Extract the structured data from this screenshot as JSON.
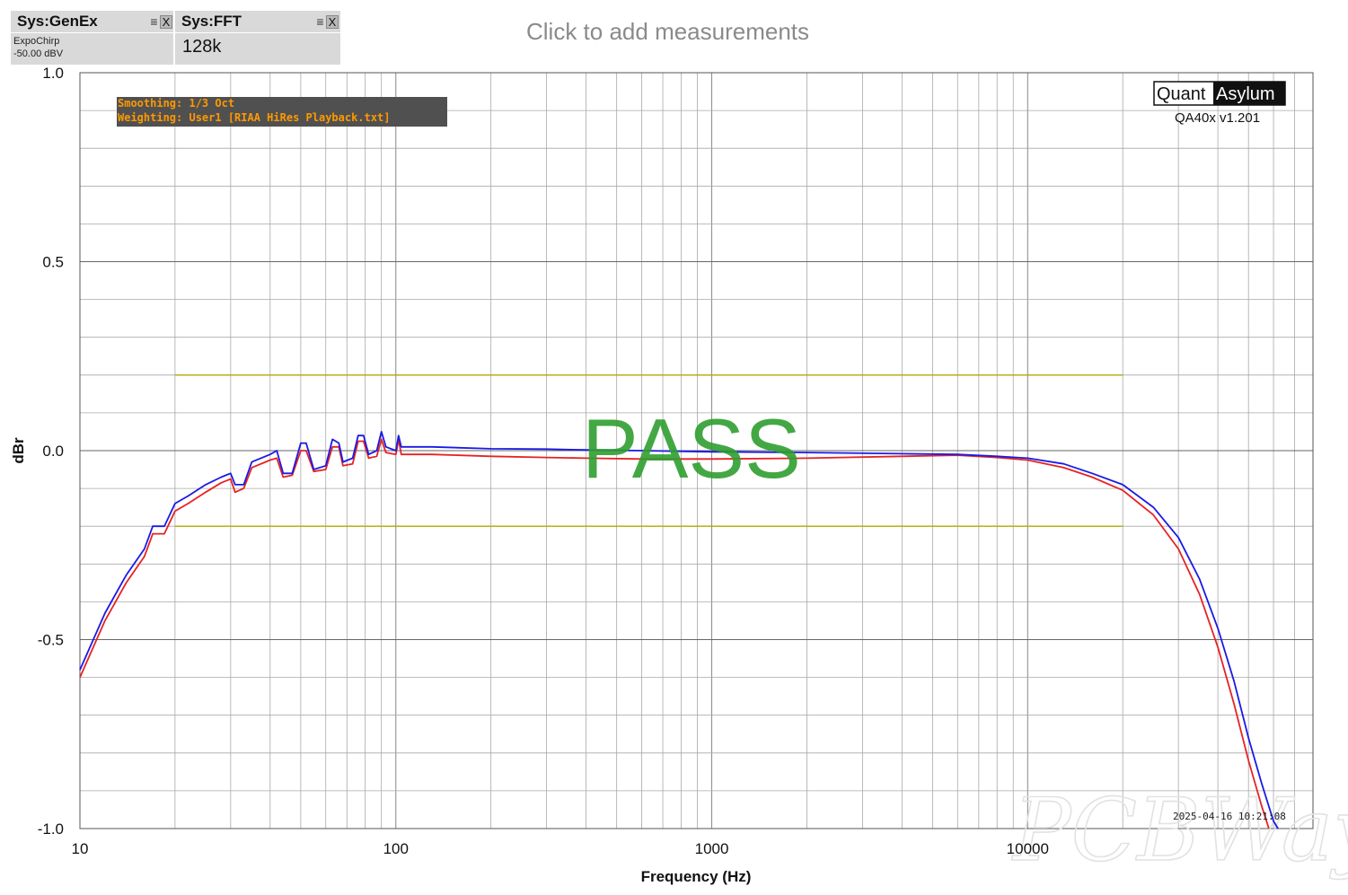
{
  "generator_tile": {
    "title": "Sys:GenEx",
    "line1": "ExpoChirp",
    "line2": "-50.00 dBV"
  },
  "analyzer_tile": {
    "title": "Sys:FFT",
    "value": "128k"
  },
  "tile_icons": {
    "menu": "≡",
    "close": "X"
  },
  "header": {
    "measurements_link": "Click to add measurements"
  },
  "settings_box": {
    "smoothing": "Smoothing: 1/3 Oct",
    "weighting": "Weighting: User1 [RIAA HiRes Playback.txt]"
  },
  "brand": {
    "left": "Quant",
    "right": "Asylum",
    "version": "QA40x v1.201"
  },
  "timestamp": "2025-04-16 10:21:08",
  "verdict": "PASS",
  "watermark": "PCBWay",
  "colors": {
    "series_blue": "#1a1ae6",
    "series_red": "#e62222",
    "limit_line": "#b5a800",
    "pass_text": "#2f9e2f",
    "grid": "#a8a8a8",
    "settings_text": "#ff9900",
    "settings_bg": "#505050"
  },
  "chart_data": {
    "type": "line",
    "title": "",
    "xlabel": "Frequency (Hz)",
    "ylabel": "dBr",
    "xscale": "log",
    "xlim": [
      10,
      80000
    ],
    "ylim": [
      -1.0,
      1.0
    ],
    "grid": true,
    "x_ticks": [
      10,
      100,
      1000,
      10000
    ],
    "x_tick_labels": [
      "10",
      "100",
      "1000",
      "10000"
    ],
    "y_ticks": [
      1.0,
      0.5,
      0.0,
      -0.5,
      -1.0
    ],
    "y_tick_labels": [
      "1.0",
      "0.5",
      "0.0",
      "-0.5",
      "-1.0"
    ],
    "limits": [
      {
        "name": "upper limit",
        "x": [
          20,
          20000
        ],
        "y": 0.2
      },
      {
        "name": "lower limit",
        "x": [
          20,
          20000
        ],
        "y": -0.2
      }
    ],
    "series": [
      {
        "color": "#1a1ae6",
        "points": [
          [
            10,
            -0.58
          ],
          [
            12,
            -0.43
          ],
          [
            14,
            -0.33
          ],
          [
            16,
            -0.26
          ],
          [
            17,
            -0.2
          ],
          [
            18.5,
            -0.2
          ],
          [
            20,
            -0.14
          ],
          [
            22,
            -0.12
          ],
          [
            25,
            -0.09
          ],
          [
            28,
            -0.07
          ],
          [
            30,
            -0.06
          ],
          [
            31,
            -0.09
          ],
          [
            33,
            -0.09
          ],
          [
            35,
            -0.03
          ],
          [
            40,
            -0.01
          ],
          [
            42,
            0.0
          ],
          [
            44,
            -0.06
          ],
          [
            47,
            -0.06
          ],
          [
            50,
            0.02
          ],
          [
            52,
            0.02
          ],
          [
            55,
            -0.05
          ],
          [
            60,
            -0.04
          ],
          [
            63,
            0.03
          ],
          [
            66,
            0.02
          ],
          [
            68,
            -0.03
          ],
          [
            73,
            -0.02
          ],
          [
            76,
            0.04
          ],
          [
            79,
            0.04
          ],
          [
            82,
            -0.01
          ],
          [
            87,
            0.0
          ],
          [
            90,
            0.05
          ],
          [
            93,
            0.01
          ],
          [
            100,
            0.0
          ],
          [
            102,
            0.04
          ],
          [
            104,
            0.01
          ],
          [
            110,
            0.01
          ],
          [
            130,
            0.01
          ],
          [
            200,
            0.005
          ],
          [
            300,
            0.004
          ],
          [
            400,
            0.002
          ],
          [
            600,
            0.0
          ],
          [
            1000,
            -0.003
          ],
          [
            2000,
            -0.005
          ],
          [
            4000,
            -0.008
          ],
          [
            6000,
            -0.01
          ],
          [
            8000,
            -0.015
          ],
          [
            10000,
            -0.02
          ],
          [
            13000,
            -0.035
          ],
          [
            16000,
            -0.06
          ],
          [
            20000,
            -0.09
          ],
          [
            25000,
            -0.15
          ],
          [
            30000,
            -0.23
          ],
          [
            35000,
            -0.34
          ],
          [
            40000,
            -0.47
          ],
          [
            45000,
            -0.61
          ],
          [
            50000,
            -0.76
          ],
          [
            55000,
            -0.88
          ],
          [
            60000,
            -0.98
          ],
          [
            62000,
            -1.0
          ]
        ]
      },
      {
        "color": "#e62222",
        "points": [
          [
            10,
            -0.6
          ],
          [
            12,
            -0.45
          ],
          [
            14,
            -0.35
          ],
          [
            16,
            -0.28
          ],
          [
            17,
            -0.22
          ],
          [
            18.5,
            -0.22
          ],
          [
            20,
            -0.16
          ],
          [
            22,
            -0.14
          ],
          [
            25,
            -0.11
          ],
          [
            28,
            -0.085
          ],
          [
            30,
            -0.075
          ],
          [
            31,
            -0.11
          ],
          [
            33,
            -0.1
          ],
          [
            35,
            -0.045
          ],
          [
            40,
            -0.025
          ],
          [
            42,
            -0.02
          ],
          [
            44,
            -0.07
          ],
          [
            47,
            -0.065
          ],
          [
            50,
            0.0
          ],
          [
            52,
            0.0
          ],
          [
            55,
            -0.055
          ],
          [
            60,
            -0.05
          ],
          [
            63,
            0.01
          ],
          [
            66,
            0.01
          ],
          [
            68,
            -0.04
          ],
          [
            73,
            -0.035
          ],
          [
            76,
            0.025
          ],
          [
            79,
            0.025
          ],
          [
            82,
            -0.02
          ],
          [
            87,
            -0.015
          ],
          [
            90,
            0.03
          ],
          [
            93,
            -0.005
          ],
          [
            100,
            -0.01
          ],
          [
            102,
            0.03
          ],
          [
            104,
            -0.01
          ],
          [
            110,
            -0.01
          ],
          [
            130,
            -0.01
          ],
          [
            200,
            -0.015
          ],
          [
            300,
            -0.018
          ],
          [
            400,
            -0.02
          ],
          [
            600,
            -0.022
          ],
          [
            1000,
            -0.022
          ],
          [
            2000,
            -0.02
          ],
          [
            4000,
            -0.015
          ],
          [
            6000,
            -0.012
          ],
          [
            8000,
            -0.018
          ],
          [
            10000,
            -0.025
          ],
          [
            13000,
            -0.045
          ],
          [
            16000,
            -0.07
          ],
          [
            20000,
            -0.105
          ],
          [
            25000,
            -0.17
          ],
          [
            30000,
            -0.26
          ],
          [
            35000,
            -0.38
          ],
          [
            40000,
            -0.52
          ],
          [
            45000,
            -0.67
          ],
          [
            50000,
            -0.82
          ],
          [
            55000,
            -0.94
          ],
          [
            58000,
            -1.0
          ]
        ]
      }
    ]
  }
}
